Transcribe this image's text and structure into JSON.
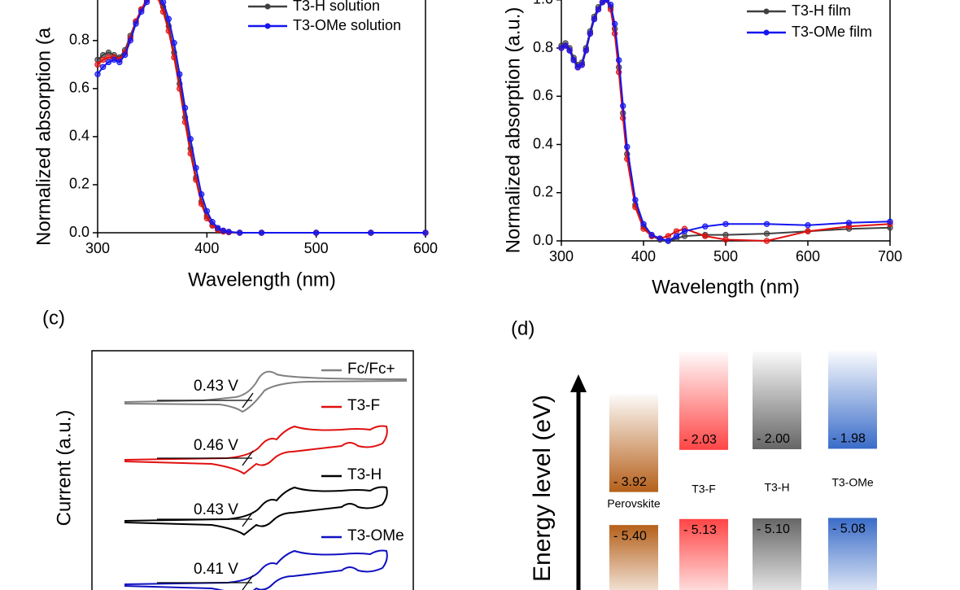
{
  "chart_data": [
    {
      "type": "line",
      "ylabel": "Normalized absorption (a",
      "xlabel": "Wavelength (nm)",
      "xlim": [
        300,
        600
      ],
      "xticks": [
        300,
        400,
        500,
        600
      ],
      "ylim": [
        0,
        1.05
      ],
      "yticks": [
        {
          "value": 0,
          "label": "0.0"
        },
        0.2,
        0.4,
        0.6,
        0.8
      ],
      "x": [
        300,
        305,
        310,
        315,
        320,
        325,
        330,
        335,
        340,
        345,
        350,
        355,
        360,
        365,
        370,
        375,
        380,
        385,
        390,
        395,
        400,
        405,
        410,
        415,
        420,
        430,
        450,
        500,
        550,
        600
      ],
      "series": [
        {
          "name": "T3-H solution",
          "color": "#404040",
          "values": [
            0.72,
            0.74,
            0.75,
            0.74,
            0.73,
            0.76,
            0.82,
            0.88,
            0.93,
            0.97,
            1.0,
            0.99,
            0.94,
            0.86,
            0.75,
            0.62,
            0.48,
            0.35,
            0.23,
            0.13,
            0.07,
            0.03,
            0.015,
            0.007,
            0.003,
            0,
            0,
            0,
            0,
            0
          ]
        },
        {
          "color": "#e01010",
          "values": [
            0.7,
            0.72,
            0.73,
            0.73,
            0.72,
            0.75,
            0.81,
            0.88,
            0.93,
            0.97,
            1.0,
            0.98,
            0.92,
            0.84,
            0.73,
            0.6,
            0.46,
            0.33,
            0.22,
            0.12,
            0.06,
            0.03,
            0.012,
            0.005,
            0.002,
            0,
            0,
            0,
            0,
            0
          ]
        },
        {
          "name": "T3-OMe solution",
          "color": "#1515f0",
          "values": [
            0.66,
            0.69,
            0.71,
            0.72,
            0.71,
            0.74,
            0.8,
            0.87,
            0.92,
            0.96,
            0.99,
            1.0,
            0.96,
            0.89,
            0.79,
            0.66,
            0.52,
            0.39,
            0.27,
            0.16,
            0.09,
            0.045,
            0.02,
            0.009,
            0.004,
            0,
            0,
            0,
            0,
            0
          ]
        }
      ]
    },
    {
      "type": "line",
      "ylabel": "Normalized absorption (a.u.)",
      "xlabel": "Wavelength (nm)",
      "xlim": [
        300,
        700
      ],
      "xticks": [
        300,
        400,
        500,
        600,
        700
      ],
      "ylim": [
        0,
        1.05
      ],
      "yticks": [
        {
          "value": 0,
          "label": "0.0"
        },
        0.2,
        0.4,
        0.6,
        0.8,
        {
          "value": 1,
          "label": "1.0"
        }
      ],
      "x": [
        300,
        305,
        310,
        315,
        320,
        325,
        330,
        335,
        340,
        345,
        350,
        355,
        360,
        365,
        370,
        375,
        380,
        390,
        400,
        410,
        420,
        430,
        440,
        450,
        475,
        500,
        550,
        600,
        650,
        700
      ],
      "series": [
        {
          "name": "T3-H film",
          "color": "#404040",
          "values": [
            0.81,
            0.82,
            0.8,
            0.76,
            0.73,
            0.74,
            0.8,
            0.87,
            0.93,
            0.97,
            0.99,
            1.0,
            0.97,
            0.88,
            0.72,
            0.53,
            0.36,
            0.15,
            0.06,
            0.02,
            0.005,
            0,
            0.01,
            0.02,
            0.025,
            0.025,
            0.03,
            0.04,
            0.05,
            0.055
          ]
        },
        {
          "color": "#e01010",
          "values": [
            0.8,
            0.81,
            0.79,
            0.75,
            0.72,
            0.73,
            0.79,
            0.86,
            0.92,
            0.96,
            0.99,
            1.0,
            0.96,
            0.86,
            0.7,
            0.51,
            0.34,
            0.14,
            0.05,
            0.02,
            0.01,
            0.02,
            0.04,
            0.05,
            0.02,
            0.005,
            0,
            0.04,
            0.06,
            0.07
          ]
        },
        {
          "name": "T3-OMe film",
          "color": "#1515f0",
          "values": [
            0.8,
            0.81,
            0.79,
            0.75,
            0.72,
            0.73,
            0.79,
            0.86,
            0.92,
            0.96,
            0.99,
            1.0,
            0.98,
            0.9,
            0.75,
            0.56,
            0.39,
            0.17,
            0.07,
            0.025,
            0.01,
            0,
            0.02,
            0.04,
            0.06,
            0.07,
            0.07,
            0.065,
            0.075,
            0.08
          ]
        }
      ]
    },
    {
      "type": "cv",
      "label": "(c)",
      "ylabel": "Current (a.u.)",
      "series": [
        {
          "name": "Fc/Fc+",
          "color": "#808080",
          "onset_label": "0.43 V"
        },
        {
          "name": "T3-F",
          "color": "#e01010",
          "onset_label": "0.46 V"
        },
        {
          "name": "T3-H",
          "color": "#000000",
          "onset_label": "0.43 V"
        },
        {
          "name": "T3-OMe",
          "color": "#1010c0",
          "onset_label": "0.41 V"
        }
      ]
    },
    {
      "type": "energy-level",
      "label": "(d)",
      "ylabel": "Energy level (eV)",
      "categories": [
        "Perovskite",
        "T3-F",
        "T3-H",
        "T3-OMe"
      ],
      "colors": [
        "#b5601a",
        "#ff4545",
        "#666666",
        "#3a6cc8"
      ],
      "label_colors": [
        "#000000",
        "#e01010",
        "#000000",
        "#3a6cc8"
      ],
      "series": [
        {
          "values": [
            -3.92,
            -2.03,
            -2.0,
            -1.98
          ],
          "value_labels": [
            "- 3.92",
            "- 2.03",
            "- 2.00",
            "- 1.98"
          ]
        },
        {
          "values": [
            -5.4,
            -5.13,
            -5.1,
            -5.08
          ],
          "value_labels": [
            "- 5.40",
            "- 5.13",
            "- 5.10",
            "- 5.08"
          ]
        }
      ]
    }
  ]
}
